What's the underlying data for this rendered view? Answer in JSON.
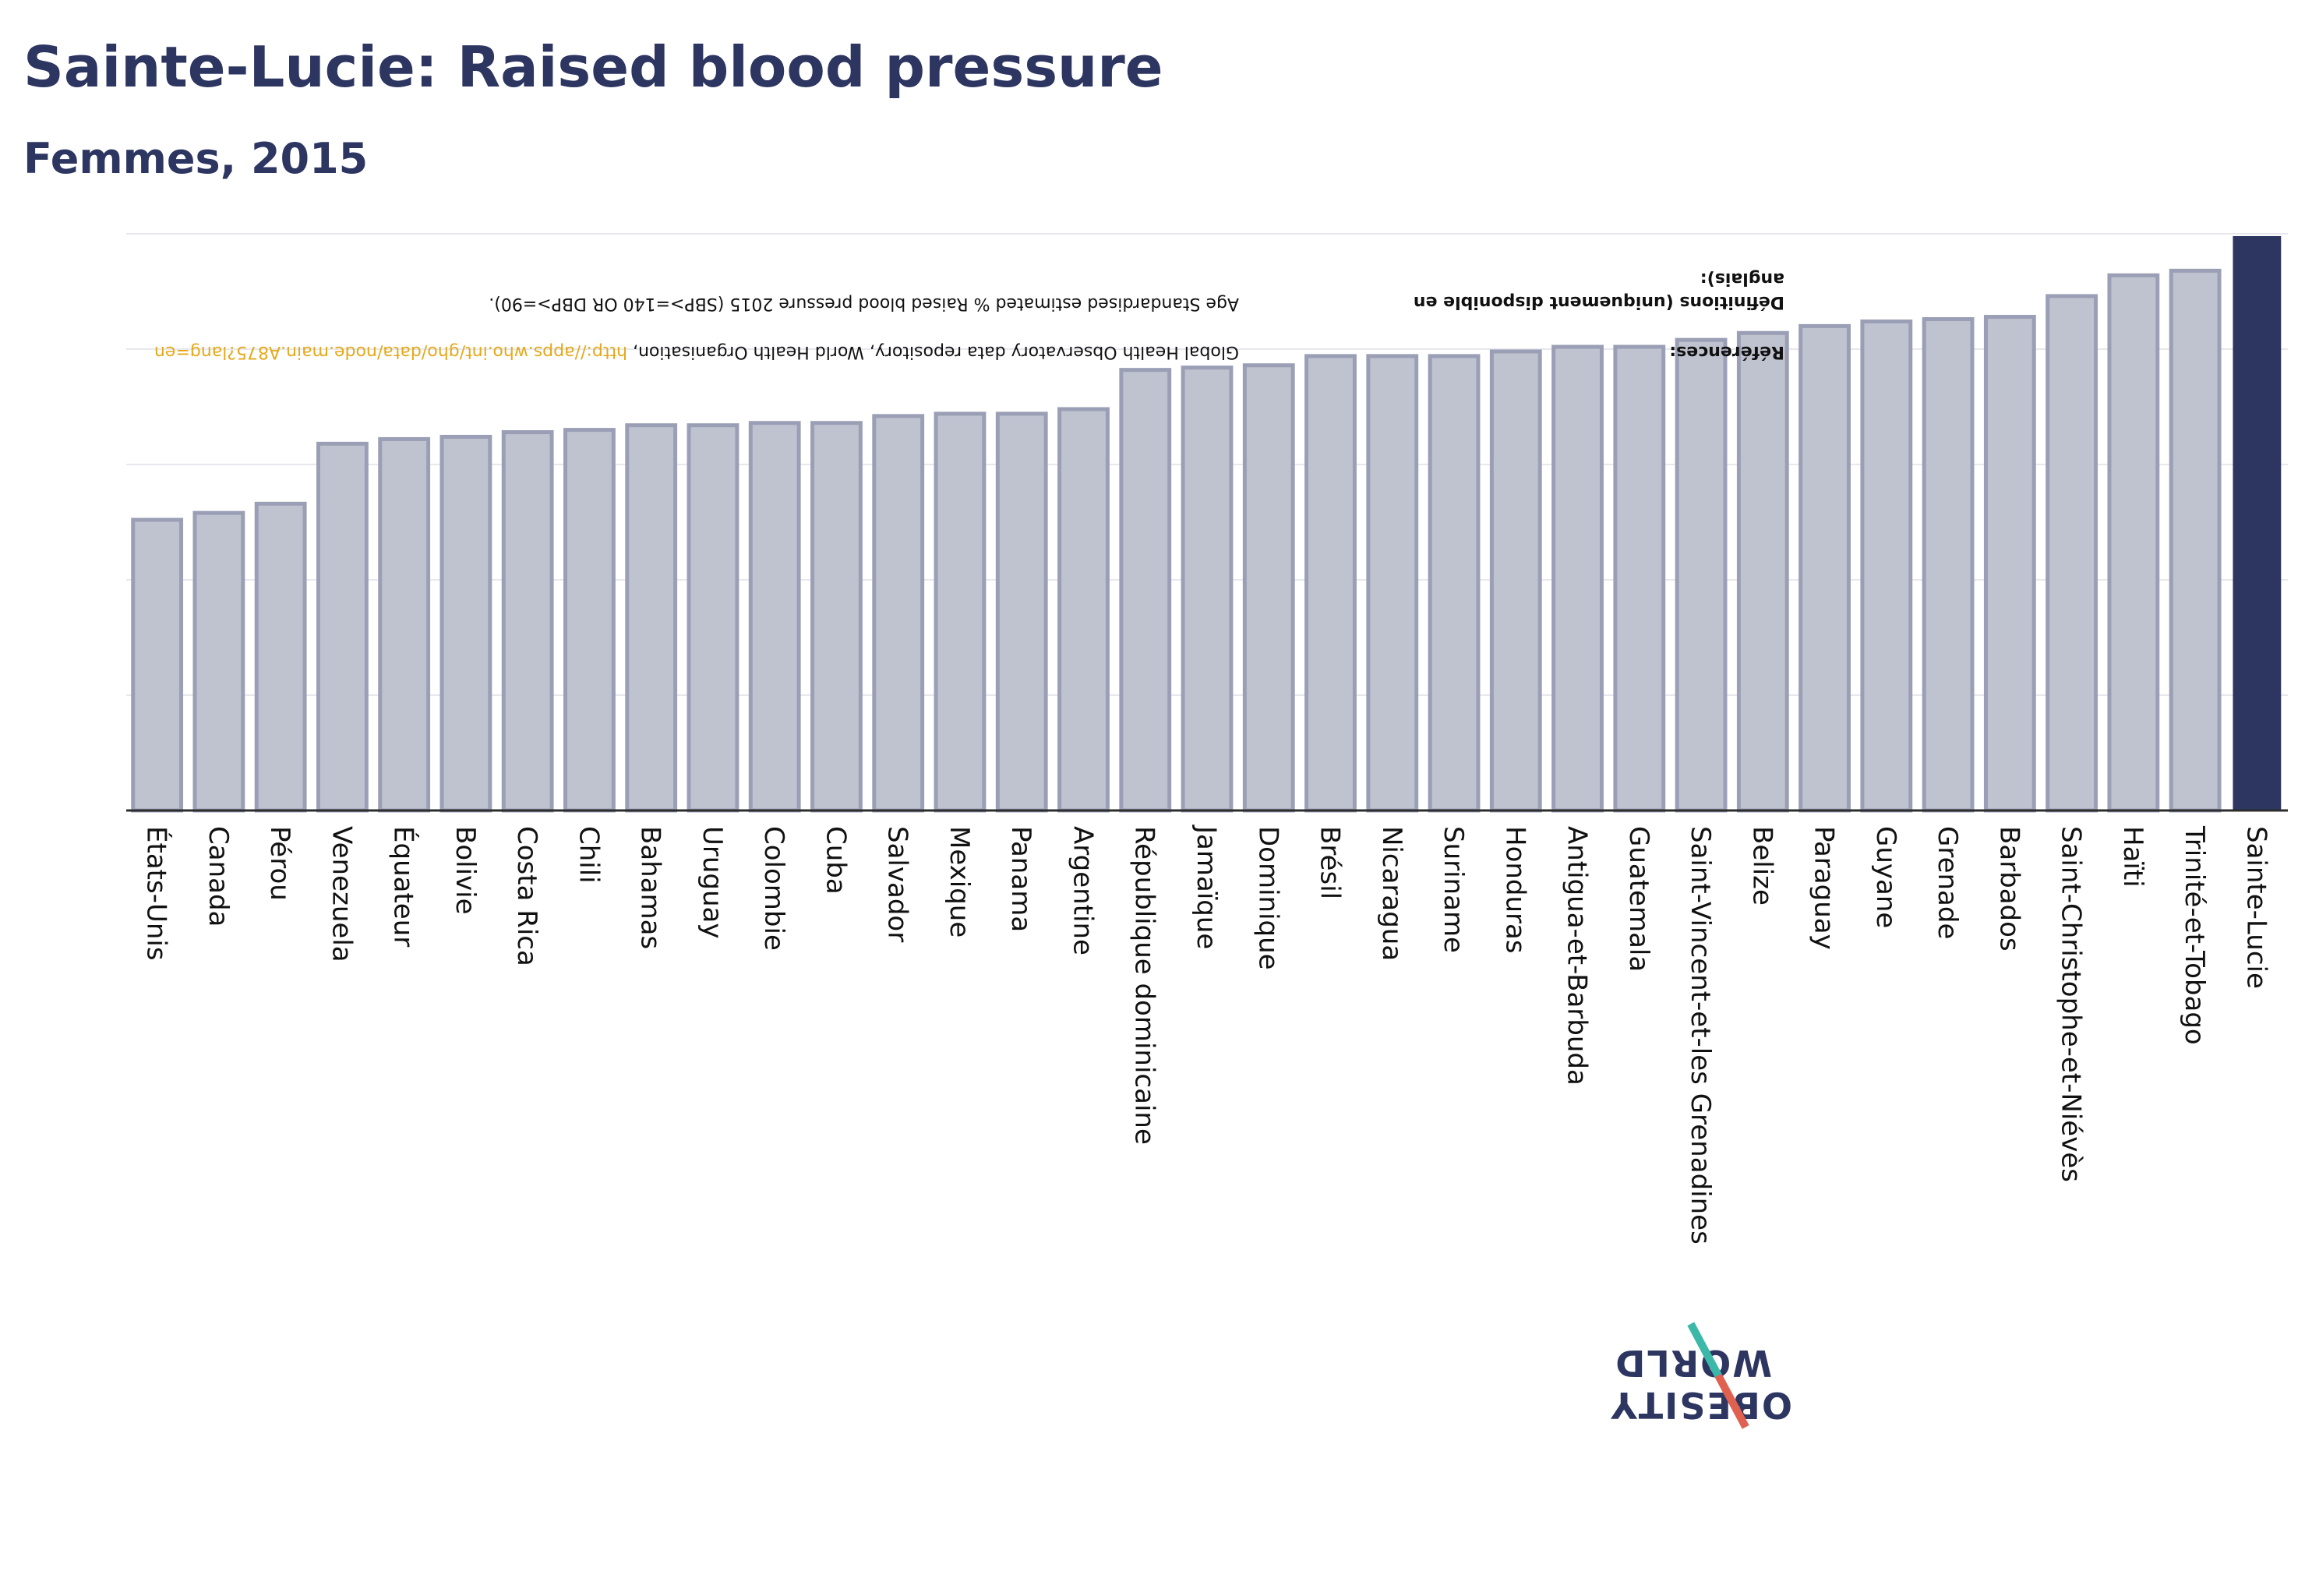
{
  "header": {
    "title": "Sainte-Lucie: Raised blood pressure",
    "subtitle": "Femmes, 2015"
  },
  "notes": {
    "references_label": "Références:",
    "references_text": "Global Health Observatory data repository, World Health Organisation, ",
    "references_link": "http://apps.who.int/gho/data/node.main.A875?lang=en",
    "definitions_label": "Définitions (uniquement disponible en anglais):",
    "definitions_text": "Age Standardised estimated % Raised blood pressure 2015 (SBP>=140 OR DBP>=90)."
  },
  "logo": {
    "line1": "OBESITY",
    "line2": "WORLD"
  },
  "colors": {
    "highlight": "#2d3561",
    "bar_fill": "#bfc2cf",
    "bar_stroke": "#9a9fb5",
    "link": "#e5a91c"
  },
  "chart_data": {
    "type": "bar",
    "highlight": "Sainte-Lucie",
    "categories": [
      "États-Unis",
      "Canada",
      "Pérou",
      "Venezuela",
      "Équateur",
      "Bolivie",
      "Costa Rica",
      "Chili",
      "Bahamas",
      "Uruguay",
      "Colombie",
      "Cuba",
      "Salvador",
      "Mexique",
      "Panama",
      "Argentine",
      "République dominicaine",
      "Jamaïque",
      "Dominique",
      "Brésil",
      "Nicaragua",
      "Suriname",
      "Honduras",
      "Antigua-et-Barbuda",
      "Guatemala",
      "Saint-Vincent-et-les Grenadines",
      "Belize",
      "Paraguay",
      "Guyane",
      "Grenade",
      "Barbados",
      "Saint-Christophe-et-Niévès",
      "Haïti",
      "Trinité-et-Tobago",
      "Sainte-Lucie"
    ],
    "values": [
      12.6,
      12.9,
      13.3,
      15.9,
      16.1,
      16.2,
      16.4,
      16.5,
      16.7,
      16.7,
      16.8,
      16.8,
      17.1,
      17.2,
      17.2,
      17.4,
      19.1,
      19.2,
      19.3,
      19.7,
      19.7,
      19.7,
      19.9,
      20.1,
      20.1,
      20.4,
      20.7,
      21.0,
      21.2,
      21.3,
      21.4,
      22.3,
      23.2,
      23.4,
      24.9
    ],
    "ylim": [
      0,
      25
    ],
    "grid": true,
    "xlabel": "",
    "ylabel": ""
  }
}
